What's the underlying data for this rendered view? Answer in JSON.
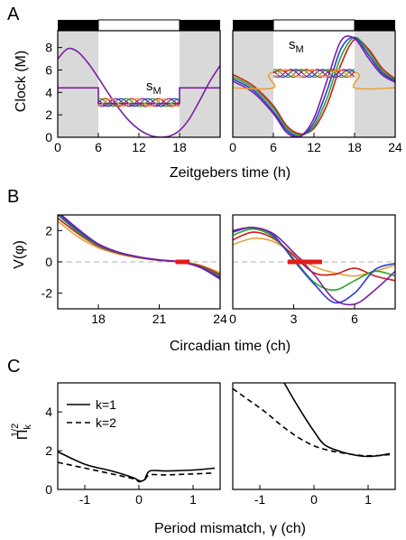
{
  "chart_data": [
    {
      "panel": "A",
      "subpanel": "left",
      "type": "line",
      "title": "",
      "xlabel": "Zeitgebers time (h)",
      "ylabel": "Clock (M)",
      "xlim": [
        0,
        24
      ],
      "ylim": [
        0,
        9.5
      ],
      "xticks": [
        "0",
        "6",
        "12",
        "18"
      ],
      "yticks": [
        "0",
        "2",
        "4",
        "6",
        "8"
      ],
      "annotation": "s",
      "annotation_sub": "M",
      "light_schedule": {
        "dark_bars": [
          [
            0,
            6
          ],
          [
            18,
            24
          ]
        ],
        "light_bars": [
          [
            6,
            18
          ]
        ]
      },
      "series": [
        {
          "color": "#7a1fa2",
          "x": [
            0,
            1.5,
            3,
            4.5,
            6,
            7.5,
            9,
            10.5,
            12,
            13.5,
            15,
            16.5,
            18,
            19.5,
            21,
            22.5,
            24
          ],
          "values": [
            7.0,
            7.9,
            7.6,
            6.6,
            5.3,
            3.9,
            2.6,
            1.5,
            0.7,
            0.2,
            0.0,
            0.1,
            0.6,
            1.7,
            3.3,
            5.0,
            6.4
          ]
        },
        {
          "color": "#7a1fa2",
          "label_line": "sM-full",
          "x": [
            0,
            6,
            6,
            18,
            18,
            24
          ],
          "values": [
            4.4,
            4.4,
            3.0,
            3.0,
            4.4,
            4.4
          ]
        },
        {
          "color": "#e8a13a",
          "label_line": "sM-base",
          "x": [
            6,
            18
          ],
          "values": [
            2.8,
            2.8
          ]
        }
      ]
    },
    {
      "panel": "A",
      "subpanel": "right",
      "type": "line",
      "title": "",
      "xlim": [
        0,
        24
      ],
      "ylim": [
        0,
        9.5
      ],
      "xticks": [
        "0",
        "6",
        "12",
        "18",
        "24"
      ],
      "annotation": "s",
      "annotation_sub": "M",
      "light_schedule": {
        "dark_bars": [
          [
            0,
            6
          ],
          [
            18,
            24
          ]
        ],
        "light_bars": [
          [
            6,
            18
          ]
        ]
      },
      "series": [
        {
          "color": "#d11a1a",
          "x": [
            0,
            3,
            6,
            8,
            10,
            12,
            14,
            16,
            18,
            20,
            22,
            24
          ],
          "values": [
            5.6,
            4.6,
            2.8,
            1.0,
            0.3,
            0.8,
            3.0,
            6.5,
            8.7,
            7.9,
            6.2,
            5.2
          ]
        },
        {
          "color": "#27a827",
          "x": [
            0,
            3,
            6,
            8,
            10,
            12,
            14,
            16,
            18,
            20,
            22,
            24
          ],
          "values": [
            5.4,
            4.4,
            2.6,
            0.8,
            0.2,
            1.0,
            3.6,
            7.2,
            8.9,
            7.7,
            6.0,
            5.1
          ]
        },
        {
          "color": "#2c3bd6",
          "x": [
            0,
            3,
            6,
            8,
            10,
            12,
            14,
            16,
            18,
            20,
            22,
            24
          ],
          "values": [
            5.2,
            4.2,
            2.3,
            0.6,
            0.1,
            1.3,
            4.3,
            7.9,
            8.9,
            7.4,
            5.8,
            5.0
          ]
        },
        {
          "color": "#7a1fa2",
          "x": [
            0,
            3,
            6,
            8,
            10,
            12,
            14,
            16,
            18,
            20,
            22,
            24
          ],
          "values": [
            5.0,
            4.0,
            2.1,
            0.4,
            0.1,
            1.7,
            5.2,
            8.6,
            8.8,
            7.1,
            5.6,
            4.9
          ]
        },
        {
          "color": "#e8a13a",
          "x": [
            0,
            6,
            6,
            18,
            18,
            24
          ],
          "values": [
            4.4,
            4.4,
            5.8,
            5.8,
            4.4,
            4.4
          ]
        }
      ]
    },
    {
      "panel": "B",
      "subpanel": "left",
      "type": "line",
      "title": "",
      "ylabel": "V(φ)",
      "xlim": [
        16,
        24
      ],
      "ylim": [
        -3,
        3
      ],
      "xticks": [
        "18",
        "21",
        "24"
      ],
      "yticks": [
        "2",
        "0",
        "-2"
      ],
      "series": [
        {
          "color": "#e8a13a",
          "x": [
            16,
            17,
            18,
            19,
            20,
            21,
            22,
            23,
            24
          ],
          "values": [
            2.6,
            1.6,
            0.9,
            0.5,
            0.25,
            0.1,
            0.02,
            -0.2,
            -0.7
          ]
        },
        {
          "color": "#d11a1a",
          "x": [
            16,
            17,
            18,
            19,
            20,
            21,
            22,
            23,
            24
          ],
          "values": [
            2.8,
            1.8,
            1.0,
            0.55,
            0.28,
            0.1,
            0.0,
            -0.25,
            -0.8
          ]
        },
        {
          "color": "#27a827",
          "x": [
            16,
            17,
            18,
            19,
            20,
            21,
            22,
            23,
            24
          ],
          "values": [
            3.0,
            1.9,
            1.05,
            0.58,
            0.3,
            0.12,
            0.0,
            -0.3,
            -0.9
          ]
        },
        {
          "color": "#2c3bd6",
          "x": [
            16,
            17,
            18,
            19,
            20,
            21,
            22,
            23,
            24
          ],
          "values": [
            3.1,
            2.0,
            1.1,
            0.6,
            0.3,
            0.12,
            0.0,
            -0.32,
            -1.0
          ]
        },
        {
          "color": "#7a1fa2",
          "x": [
            16,
            17,
            18,
            19,
            20,
            21,
            22,
            23,
            24
          ],
          "values": [
            3.2,
            2.1,
            1.15,
            0.62,
            0.32,
            0.13,
            0.0,
            -0.35,
            -1.1
          ]
        }
      ],
      "highlight": {
        "color": "#e31a1a",
        "x": [
          21.8,
          22.5
        ],
        "y": 0
      }
    },
    {
      "panel": "B",
      "subpanel": "right",
      "type": "line",
      "title": "",
      "xlabel": "Circadian time (ch)",
      "xlim": [
        0,
        8
      ],
      "ylim": [
        -3,
        3
      ],
      "xticks": [
        "0",
        "3",
        "6"
      ],
      "series": [
        {
          "color": "#e8a13a",
          "x": [
            0,
            1,
            2,
            3,
            4,
            5,
            6,
            7,
            8
          ],
          "values": [
            1.1,
            1.5,
            1.3,
            0.5,
            -0.3,
            -0.7,
            -0.9,
            -0.6,
            -0.2
          ]
        },
        {
          "color": "#d11a1a",
          "x": [
            0,
            1,
            2,
            3,
            4,
            5,
            6,
            7,
            8
          ],
          "values": [
            1.4,
            1.9,
            1.5,
            0.4,
            -0.7,
            -0.8,
            -0.4,
            -0.9,
            -1.2
          ]
        },
        {
          "color": "#27a827",
          "x": [
            0,
            1,
            2,
            3,
            4,
            5,
            6,
            7,
            8
          ],
          "values": [
            1.7,
            2.1,
            1.6,
            0.2,
            -1.3,
            -1.8,
            -1.2,
            -0.6,
            -0.9
          ]
        },
        {
          "color": "#2c3bd6",
          "x": [
            0,
            1,
            2,
            3,
            4,
            5,
            6,
            7,
            8
          ],
          "values": [
            1.9,
            2.2,
            1.7,
            0.1,
            -1.4,
            -2.6,
            -2.0,
            -0.5,
            -0.1
          ]
        },
        {
          "color": "#7a1fa2",
          "x": [
            0,
            1,
            2,
            3,
            4,
            5,
            6,
            7,
            8
          ],
          "values": [
            2.0,
            2.2,
            1.8,
            0.6,
            -0.8,
            -2.4,
            -2.7,
            -1.8,
            -0.6
          ]
        }
      ],
      "highlight": {
        "color": "#e31a1a",
        "x": [
          2.7,
          4.4
        ],
        "y": 0
      }
    },
    {
      "panel": "C",
      "subpanel": "left",
      "type": "line",
      "title": "",
      "xlabel": "Period mismatch, γ (ch)",
      "ylabel": "Π",
      "ylabel_sub": "k",
      "ylabel_sup": "1/2",
      "xlim": [
        -1.5,
        1.5
      ],
      "ylim": [
        0,
        5.5
      ],
      "xticks": [
        "-1",
        "0",
        "1"
      ],
      "yticks": [
        "0",
        "2",
        "4"
      ],
      "legend": {
        "placement": "top-left",
        "entries": [
          "k=1",
          "k=2"
        ]
      },
      "series": [
        {
          "name": "k=1",
          "style": "solid",
          "x": [
            -1.5,
            -1.0,
            -0.5,
            -0.1,
            0.0,
            0.1,
            0.2,
            0.5,
            1.0,
            1.4
          ],
          "values": [
            1.95,
            1.3,
            0.95,
            0.6,
            0.45,
            0.5,
            0.95,
            0.95,
            1.0,
            1.1
          ]
        },
        {
          "name": "k=2",
          "style": "dashed",
          "x": [
            -1.5,
            -1.0,
            -0.5,
            -0.1,
            0.0,
            0.1,
            0.2,
            0.5,
            1.0,
            1.4
          ],
          "values": [
            1.4,
            1.1,
            0.8,
            0.55,
            0.4,
            0.48,
            0.75,
            0.75,
            0.8,
            0.85
          ]
        }
      ]
    },
    {
      "panel": "C",
      "subpanel": "right",
      "type": "line",
      "title": "",
      "xlim": [
        -1.5,
        1.5
      ],
      "ylim": [
        0,
        5.5
      ],
      "xticks": [
        "-1",
        "0",
        "1"
      ],
      "series": [
        {
          "name": "k=1",
          "style": "solid",
          "x": [
            -0.55,
            -0.3,
            0.0,
            0.2,
            0.5,
            0.8,
            1.0,
            1.2,
            1.4
          ],
          "values": [
            5.5,
            4.3,
            3.0,
            2.3,
            1.95,
            1.75,
            1.7,
            1.75,
            1.85
          ]
        },
        {
          "name": "k=2",
          "style": "dashed",
          "x": [
            -1.5,
            -1.2,
            -0.9,
            -0.6,
            -0.3,
            0.0,
            0.3,
            0.6,
            0.9,
            1.2,
            1.4
          ],
          "values": [
            5.2,
            4.6,
            4.0,
            3.3,
            2.7,
            2.25,
            2.0,
            1.85,
            1.75,
            1.75,
            1.8
          ]
        }
      ]
    }
  ],
  "panel_letters": [
    "A",
    "B",
    "C"
  ],
  "panels": {
    "A": {
      "xlabel": "Zeitgebers time (h)",
      "ylabel": "Clock (M)",
      "annotation": "s",
      "annotation_sub": "M"
    },
    "B": {
      "xlabel": "Circadian time (ch)",
      "ylabel": "V(φ)"
    },
    "C": {
      "xlabel": "Period mismatch, γ (ch)",
      "ylabel": "Π",
      "ylabel_sub": "k",
      "ylabel_sup": "1/2",
      "legend_k1": "k=1",
      "legend_k2": "k=2"
    }
  },
  "colors": {
    "purple": "#7a1fa2",
    "orange": "#e8a13a",
    "red": "#d11a1a",
    "green": "#27a827",
    "blue": "#2c3bd6",
    "shade": "#d9d9d9",
    "zero_line": "#bfbfbf",
    "highlight": "#e31a1a"
  }
}
